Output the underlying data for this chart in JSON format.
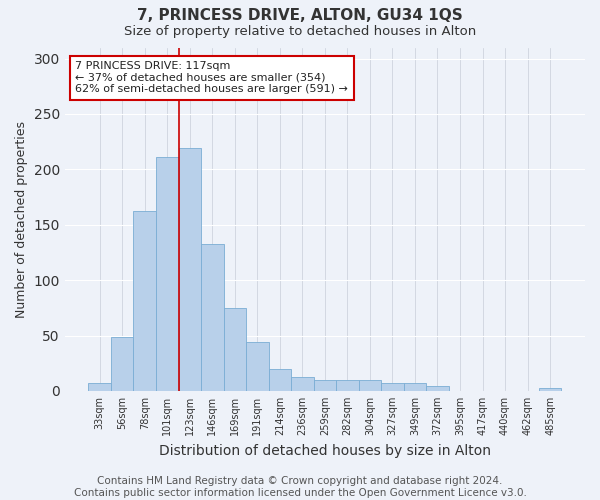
{
  "title": "7, PRINCESS DRIVE, ALTON, GU34 1QS",
  "subtitle": "Size of property relative to detached houses in Alton",
  "xlabel": "Distribution of detached houses by size in Alton",
  "ylabel": "Number of detached properties",
  "categories": [
    "33sqm",
    "56sqm",
    "78sqm",
    "101sqm",
    "123sqm",
    "146sqm",
    "169sqm",
    "191sqm",
    "214sqm",
    "236sqm",
    "259sqm",
    "282sqm",
    "304sqm",
    "327sqm",
    "349sqm",
    "372sqm",
    "395sqm",
    "417sqm",
    "440sqm",
    "462sqm",
    "485sqm"
  ],
  "values": [
    7,
    49,
    162,
    211,
    219,
    133,
    75,
    44,
    20,
    13,
    10,
    10,
    10,
    7,
    7,
    4,
    0,
    0,
    0,
    0,
    3
  ],
  "bar_color": "#b8d0ea",
  "bar_edge_color": "#7aadd4",
  "background_color": "#eef2f9",
  "grid_color": "#d8dde8",
  "vline_x_idx": 4,
  "vline_color": "#cc0000",
  "annotation_text": "7 PRINCESS DRIVE: 117sqm\n← 37% of detached houses are smaller (354)\n62% of semi-detached houses are larger (591) →",
  "annotation_box_color": "#ffffff",
  "annotation_box_edge": "#cc0000",
  "ylim": [
    0,
    310
  ],
  "yticks": [
    0,
    50,
    100,
    150,
    200,
    250,
    300
  ],
  "footer": "Contains HM Land Registry data © Crown copyright and database right 2024.\nContains public sector information licensed under the Open Government Licence v3.0.",
  "title_fontsize": 11,
  "subtitle_fontsize": 9.5,
  "xlabel_fontsize": 10,
  "ylabel_fontsize": 9,
  "footer_fontsize": 7.5
}
